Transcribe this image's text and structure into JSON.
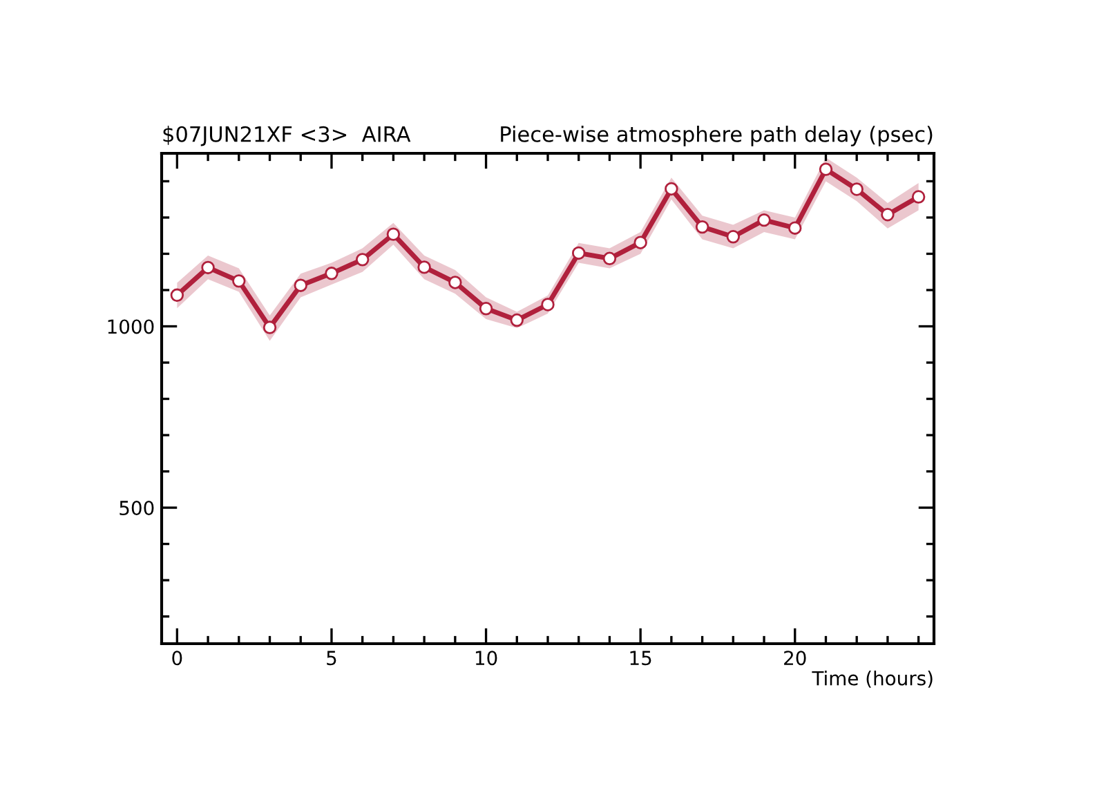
{
  "chart_data": {
    "type": "line",
    "title": "$07JUN21XF <3>  AIRA",
    "subtitle": "Piece-wise atmosphere path delay (psec)",
    "xlabel": "Time (hours)",
    "x": [
      0,
      1,
      2,
      3,
      4,
      5,
      6,
      7,
      8,
      9,
      10,
      11,
      12,
      13,
      14,
      15,
      16,
      17,
      18,
      19,
      20,
      21,
      22,
      23,
      24
    ],
    "series": [
      {
        "color": "#b0203c",
        "values": [
          1086,
          1162,
          1125,
          997,
          1113,
          1146,
          1184,
          1254,
          1163,
          1121,
          1049,
          1017,
          1060,
          1202,
          1187,
          1231,
          1379,
          1274,
          1247,
          1293,
          1271,
          1433,
          1378,
          1308,
          1357
        ],
        "lower": [
          1050,
          1130,
          1095,
          960,
          1080,
          1115,
          1150,
          1225,
          1130,
          1090,
          1020,
          995,
          1035,
          1175,
          1160,
          1200,
          1350,
          1240,
          1215,
          1260,
          1240,
          1400,
          1345,
          1270,
          1320
        ],
        "upper": [
          1120,
          1195,
          1160,
          1030,
          1145,
          1175,
          1215,
          1285,
          1195,
          1155,
          1080,
          1040,
          1085,
          1230,
          1215,
          1260,
          1410,
          1305,
          1280,
          1320,
          1300,
          1465,
          1410,
          1340,
          1395
        ]
      }
    ],
    "marker": "circle",
    "line_style": "solid",
    "grid": false,
    "legend": false,
    "xlim": [
      -0.5,
      24.5
    ],
    "ylim": [
      125,
      1477
    ],
    "xticks": [
      0,
      {
        "value": 1,
        "label": null
      },
      {
        "value": 2,
        "label": null
      },
      {
        "value": 3,
        "label": null
      },
      {
        "value": 4,
        "label": null
      },
      5,
      {
        "value": 6,
        "label": null
      },
      {
        "value": 7,
        "label": null
      },
      {
        "value": 8,
        "label": null
      },
      {
        "value": 9,
        "label": null
      },
      10,
      {
        "value": 11,
        "label": null
      },
      {
        "value": 12,
        "label": null
      },
      {
        "value": 13,
        "label": null
      },
      {
        "value": 14,
        "label": null
      },
      15,
      {
        "value": 16,
        "label": null
      },
      {
        "value": 17,
        "label": null
      },
      {
        "value": 18,
        "label": null
      },
      {
        "value": 19,
        "label": null
      },
      20,
      {
        "value": 21,
        "label": null
      },
      {
        "value": 22,
        "label": null
      },
      {
        "value": 23,
        "label": null
      },
      {
        "value": 24,
        "label": null
      }
    ],
    "yticks": [
      {
        "value": 200,
        "label": null
      },
      {
        "value": 300,
        "label": null
      },
      {
        "value": 400,
        "label": null
      },
      500,
      {
        "value": 600,
        "label": null
      },
      {
        "value": 700,
        "label": null
      },
      {
        "value": 800,
        "label": null
      },
      {
        "value": 900,
        "label": null
      },
      1000,
      {
        "value": 1100,
        "label": null
      },
      {
        "value": 1200,
        "label": null
      },
      {
        "value": 1300,
        "label": null
      },
      {
        "value": 1400,
        "label": null
      }
    ]
  }
}
